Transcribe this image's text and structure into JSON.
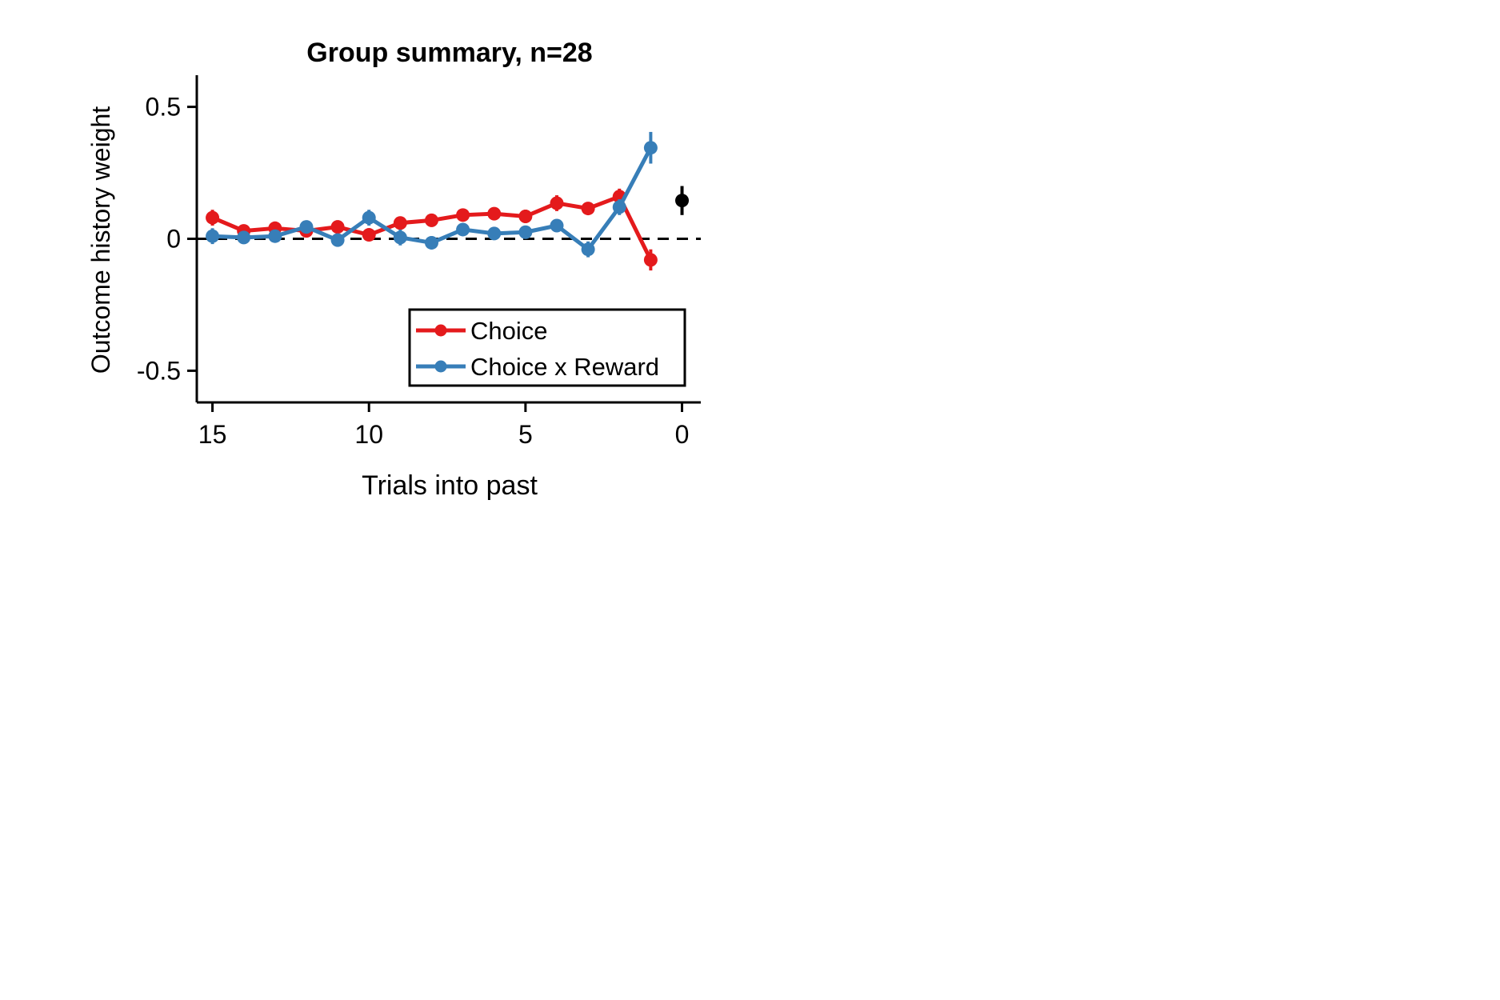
{
  "chart_data": {
    "type": "line",
    "title": "Group summary, n=28",
    "xlabel": "Trials into past",
    "ylabel": "Outcome history weight",
    "xlim": [
      15.5,
      -0.6
    ],
    "ylim": [
      -0.62,
      0.62
    ],
    "x_ticks": [
      15,
      10,
      5,
      0
    ],
    "x_tick_labels": [
      "15",
      "10",
      "5",
      "0"
    ],
    "y_ticks": [
      0.5,
      0,
      -0.5
    ],
    "y_tick_labels": [
      "0.5",
      "0",
      "-0.5"
    ],
    "reference_line": {
      "y": 0,
      "style": "dashed",
      "color": "#000000"
    },
    "legend": {
      "position": "lower-right",
      "entries": [
        "Choice",
        "Choice x Reward"
      ]
    },
    "x": [
      15,
      14,
      13,
      12,
      11,
      10,
      9,
      8,
      7,
      6,
      5,
      4,
      3,
      2,
      1
    ],
    "series": [
      {
        "name": "Choice",
        "color": "#e41a1c",
        "values": [
          0.08,
          0.03,
          0.04,
          0.03,
          0.045,
          0.015,
          0.06,
          0.07,
          0.09,
          0.095,
          0.085,
          0.135,
          0.115,
          0.16,
          -0.08
        ],
        "errors": [
          0.03,
          0.02,
          0.02,
          0.02,
          0.025,
          0.02,
          0.025,
          0.025,
          0.02,
          0.02,
          0.025,
          0.03,
          0.02,
          0.03,
          0.04
        ]
      },
      {
        "name": "Choice x Reward",
        "color": "#377eb8",
        "values": [
          0.01,
          0.005,
          0.01,
          0.045,
          -0.005,
          0.08,
          0.005,
          -0.015,
          0.035,
          0.02,
          0.025,
          0.05,
          -0.04,
          0.12,
          0.345
        ],
        "errors": [
          0.03,
          0.02,
          0.025,
          0.02,
          0.02,
          0.03,
          0.03,
          0.025,
          0.02,
          0.02,
          0.02,
          0.02,
          0.03,
          0.03,
          0.06
        ]
      }
    ],
    "extra_points": [
      {
        "x": 0,
        "value": 0.145,
        "error": 0.055,
        "color": "#000000"
      }
    ]
  }
}
